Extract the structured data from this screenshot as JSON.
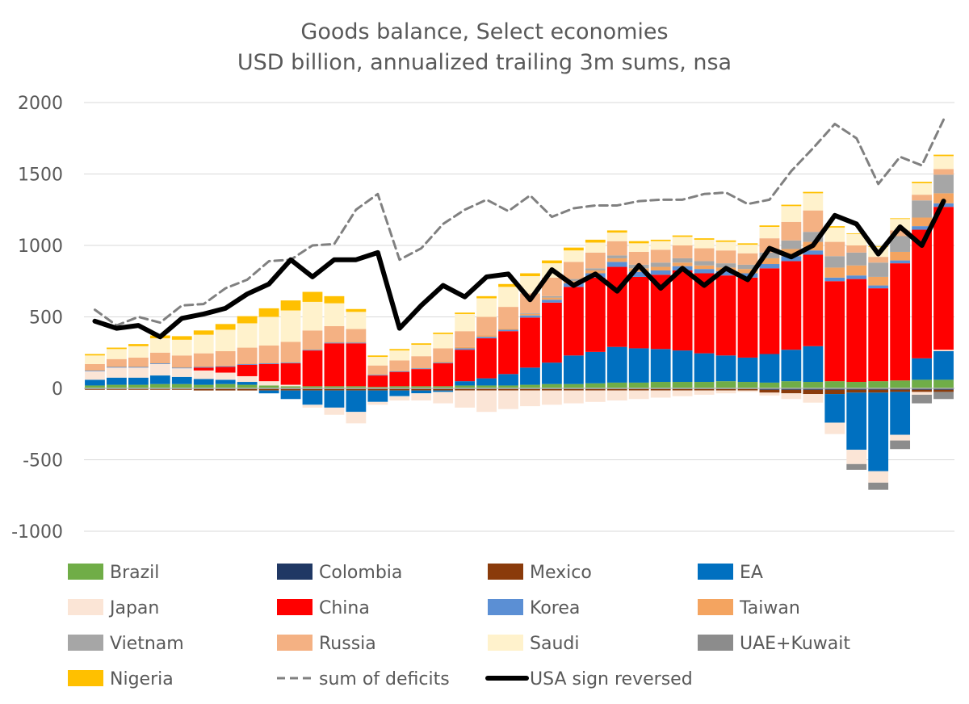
{
  "chart_data": {
    "type": "area",
    "title": "Goods balance, Select economies",
    "subtitle": "USD billion, annualized trailing 3m sums, nsa",
    "xlabel": "",
    "ylabel": "",
    "ylim": [
      -1000,
      2000
    ],
    "y_ticks": [
      2000,
      1500,
      1000,
      500,
      0,
      -500,
      -1000
    ],
    "y_tick_labels": [
      "2000",
      "1500",
      "1000",
      "500",
      "0",
      "-500",
      "-1000"
    ],
    "x_tick_labels": [],
    "n_periods": 40,
    "grid": true,
    "legend_position": "bottom",
    "series": [
      {
        "name": "Brazil",
        "kind": "stacked-bar",
        "color": "#70ad47",
        "values": [
          20,
          25,
          25,
          30,
          30,
          25,
          30,
          25,
          20,
          15,
          15,
          15,
          15,
          10,
          15,
          15,
          15,
          20,
          20,
          20,
          25,
          30,
          30,
          35,
          40,
          40,
          45,
          45,
          45,
          50,
          45,
          40,
          50,
          45,
          50,
          45,
          50,
          55,
          60,
          60
        ]
      },
      {
        "name": "Colombia",
        "kind": "stacked-bar",
        "color": "#203864",
        "values": [
          -5,
          -5,
          -5,
          -5,
          -5,
          -5,
          -5,
          -5,
          -5,
          -5,
          -5,
          -5,
          -5,
          -5,
          -5,
          -5,
          -5,
          -5,
          -5,
          -5,
          -5,
          -5,
          -5,
          -5,
          -5,
          -5,
          -5,
          -5,
          -5,
          -5,
          -5,
          -10,
          -10,
          -10,
          -10,
          -10,
          -10,
          -10,
          -10,
          -10
        ]
      },
      {
        "name": "Mexico",
        "kind": "stacked-bar",
        "color": "#8a3b0b",
        "values": [
          -5,
          -5,
          -5,
          -5,
          -5,
          -10,
          -10,
          -10,
          -10,
          -10,
          -10,
          -10,
          -10,
          -10,
          -10,
          -10,
          -10,
          -10,
          -10,
          -10,
          -10,
          -10,
          -10,
          -10,
          -10,
          -10,
          -10,
          -10,
          -10,
          -10,
          -10,
          -20,
          -25,
          -30,
          -30,
          -20,
          -20,
          -15,
          -15,
          -15
        ]
      },
      {
        "name": "EA",
        "kind": "stacked-bar",
        "color": "#0070c0",
        "values": [
          40,
          50,
          50,
          60,
          50,
          40,
          30,
          20,
          -20,
          -60,
          -100,
          -120,
          -150,
          -80,
          -40,
          -20,
          -10,
          30,
          50,
          80,
          120,
          150,
          200,
          220,
          250,
          240,
          230,
          220,
          200,
          180,
          170,
          200,
          220,
          250,
          -200,
          -400,
          -550,
          -300,
          150,
          200
        ]
      },
      {
        "name": "Japan",
        "kind": "stacked-bar",
        "color": "#fbe5d6",
        "values": [
          60,
          70,
          70,
          80,
          60,
          60,
          50,
          40,
          30,
          10,
          -20,
          -50,
          -80,
          -20,
          -30,
          -50,
          -80,
          -120,
          -150,
          -130,
          -110,
          -100,
          -90,
          -80,
          -70,
          -60,
          -50,
          -40,
          -30,
          -20,
          -10,
          -20,
          -40,
          -60,
          -80,
          -100,
          -80,
          -40,
          -20,
          10
        ]
      },
      {
        "name": "China",
        "kind": "stacked-bar",
        "color": "#ff0000",
        "values": [
          0,
          0,
          0,
          0,
          0,
          20,
          40,
          80,
          120,
          150,
          250,
          300,
          300,
          80,
          100,
          120,
          160,
          220,
          280,
          300,
          350,
          420,
          480,
          520,
          560,
          500,
          520,
          560,
          560,
          560,
          560,
          600,
          620,
          640,
          700,
          720,
          650,
          820,
          900,
          1000
        ]
      },
      {
        "name": "Korea",
        "kind": "stacked-bar",
        "color": "#5b8fd4",
        "values": [
          5,
          5,
          5,
          5,
          5,
          5,
          5,
          5,
          5,
          5,
          5,
          5,
          5,
          5,
          5,
          5,
          5,
          10,
          10,
          10,
          15,
          20,
          25,
          30,
          35,
          35,
          30,
          30,
          30,
          30,
          30,
          30,
          35,
          30,
          25,
          25,
          20,
          20,
          25,
          25
        ]
      },
      {
        "name": "Taiwan",
        "kind": "stacked-bar",
        "color": "#f4a460",
        "values": [
          5,
          5,
          5,
          5,
          5,
          5,
          5,
          5,
          5,
          5,
          5,
          5,
          5,
          5,
          5,
          5,
          10,
          10,
          10,
          10,
          10,
          15,
          15,
          20,
          25,
          25,
          25,
          25,
          25,
          25,
          30,
          40,
          50,
          60,
          70,
          70,
          60,
          60,
          60,
          70
        ]
      },
      {
        "name": "Vietnam",
        "kind": "stacked-bar",
        "color": "#a6a6a6",
        "values": [
          0,
          0,
          0,
          0,
          0,
          0,
          0,
          0,
          0,
          0,
          0,
          0,
          0,
          0,
          0,
          0,
          0,
          0,
          0,
          0,
          5,
          10,
          15,
          15,
          20,
          25,
          30,
          30,
          30,
          30,
          30,
          40,
          60,
          70,
          80,
          90,
          100,
          110,
          120,
          130
        ]
      },
      {
        "name": "Russia",
        "kind": "stacked-bar",
        "color": "#f4b183",
        "values": [
          40,
          50,
          60,
          70,
          80,
          90,
          100,
          110,
          120,
          140,
          130,
          110,
          90,
          60,
          70,
          80,
          90,
          110,
          130,
          150,
          140,
          130,
          120,
          110,
          100,
          90,
          90,
          90,
          90,
          90,
          80,
          100,
          130,
          150,
          100,
          50,
          40,
          40,
          40,
          40
        ]
      },
      {
        "name": "Saudi",
        "kind": "stacked-bar",
        "color": "#fff2cc",
        "values": [
          60,
          70,
          80,
          100,
          110,
          130,
          150,
          170,
          200,
          220,
          200,
          160,
          120,
          60,
          70,
          80,
          100,
          120,
          130,
          140,
          120,
          100,
          80,
          70,
          60,
          60,
          60,
          60,
          60,
          60,
          60,
          80,
          110,
          120,
          100,
          80,
          70,
          80,
          80,
          90
        ]
      },
      {
        "name": "UAE+Kuwait",
        "kind": "stacked-bar",
        "color": "#8c8c8c",
        "values": [
          0,
          0,
          0,
          0,
          0,
          0,
          0,
          0,
          0,
          0,
          0,
          0,
          0,
          0,
          0,
          0,
          0,
          0,
          0,
          0,
          0,
          0,
          0,
          0,
          0,
          0,
          0,
          0,
          0,
          0,
          0,
          0,
          0,
          0,
          0,
          -40,
          -50,
          -60,
          -60,
          -50
        ]
      },
      {
        "name": "Nigeria",
        "kind": "stacked-bar",
        "color": "#ffc000",
        "values": [
          10,
          10,
          15,
          20,
          25,
          30,
          40,
          50,
          60,
          70,
          70,
          50,
          20,
          10,
          10,
          10,
          10,
          10,
          15,
          20,
          20,
          20,
          20,
          20,
          15,
          15,
          10,
          10,
          10,
          10,
          10,
          10,
          10,
          10,
          10,
          5,
          5,
          5,
          10,
          10
        ]
      },
      {
        "name": "sum of deficits",
        "kind": "dashed-line",
        "color": "#808080",
        "values": [
          550,
          440,
          500,
          460,
          580,
          590,
          700,
          760,
          890,
          900,
          1000,
          1010,
          1250,
          1360,
          900,
          980,
          1150,
          1250,
          1320,
          1240,
          1350,
          1200,
          1260,
          1280,
          1280,
          1310,
          1320,
          1320,
          1360,
          1370,
          1290,
          1320,
          1520,
          1680,
          1850,
          1750,
          1430,
          1620,
          1560,
          1880
        ]
      },
      {
        "name": "USA sign reversed",
        "kind": "line",
        "color": "#000000",
        "values": [
          470,
          420,
          440,
          360,
          490,
          520,
          560,
          660,
          730,
          900,
          780,
          900,
          900,
          950,
          420,
          580,
          720,
          640,
          780,
          800,
          620,
          830,
          720,
          800,
          680,
          860,
          700,
          840,
          720,
          840,
          760,
          980,
          920,
          1000,
          1210,
          1150,
          940,
          1130,
          1000,
          1310
        ]
      }
    ]
  }
}
